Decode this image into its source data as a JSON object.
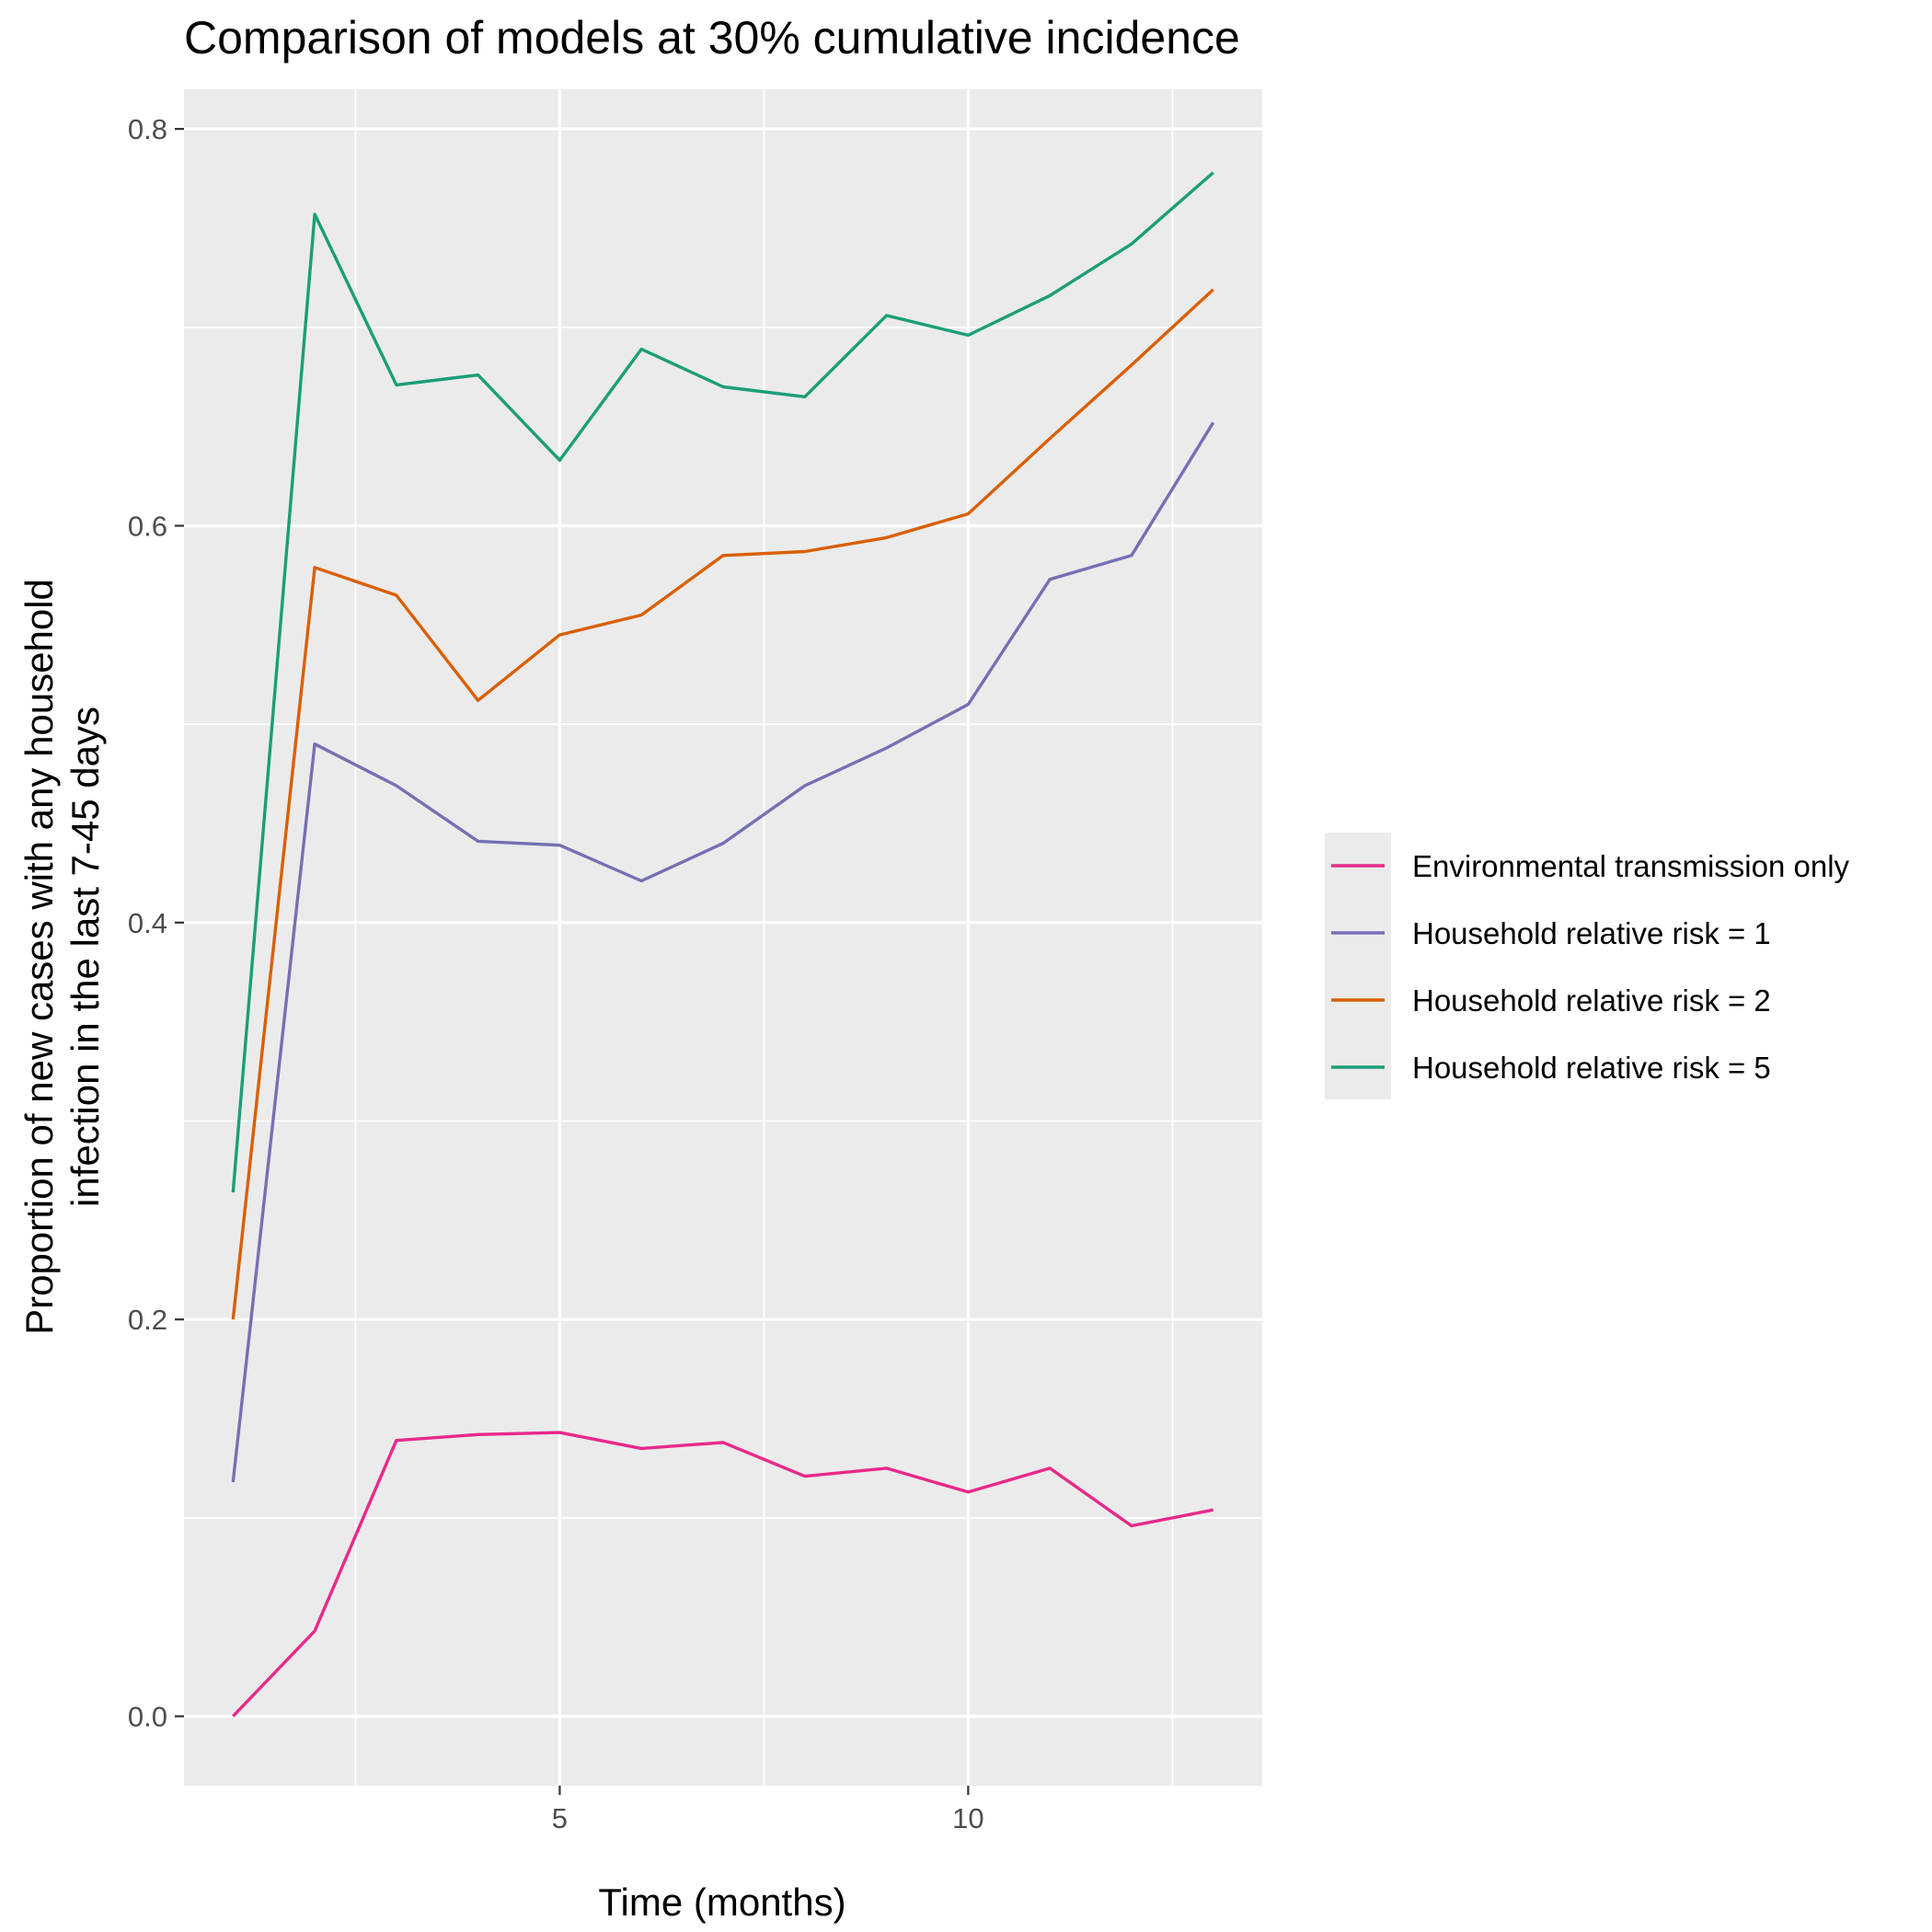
{
  "chart_data": {
    "type": "line",
    "title": "Comparison of models at 30% cumulative incidence",
    "xlabel": "Time (months)",
    "ylabel": [
      "Proportion of new cases with any household",
      "infection in the last 7-45 days"
    ],
    "x": [
      1,
      2,
      3,
      4,
      5,
      6,
      7,
      8,
      9,
      10,
      11,
      12,
      13
    ],
    "xlim": [
      0.4,
      13.6
    ],
    "ylim": [
      -0.035,
      0.82
    ],
    "x_ticks": [
      5,
      10
    ],
    "x_tick_labels": [
      "5",
      "10"
    ],
    "x_minor_ticks": [
      2.5,
      7.5,
      12.5
    ],
    "y_ticks": [
      0.0,
      0.2,
      0.4,
      0.6,
      0.8
    ],
    "y_tick_labels": [
      "0.0",
      "0.2",
      "0.4",
      "0.6",
      "0.8"
    ],
    "y_minor_ticks": [
      0.1,
      0.3,
      0.5,
      0.7
    ],
    "grid": true,
    "legend_position": "right",
    "series": [
      {
        "name": "Environmental transmission only",
        "color": "#e7298a",
        "values": [
          0.0,
          0.043,
          0.139,
          0.142,
          0.143,
          0.135,
          0.138,
          0.121,
          0.125,
          0.113,
          0.125,
          0.096,
          0.104
        ]
      },
      {
        "name": "Household relative risk = 1",
        "color": "#7570b3",
        "values": [
          0.118,
          0.49,
          0.469,
          0.441,
          0.439,
          0.421,
          0.44,
          0.469,
          0.488,
          0.51,
          0.573,
          0.585,
          0.652
        ]
      },
      {
        "name": "Household relative risk = 2",
        "color": "#d95f02",
        "values": [
          0.2,
          0.579,
          0.565,
          0.512,
          0.545,
          0.555,
          0.585,
          0.587,
          0.594,
          0.606,
          0.644,
          0.681,
          0.719
        ]
      },
      {
        "name": "Household relative risk = 5",
        "color": "#1b9e77",
        "values": [
          0.264,
          0.757,
          0.671,
          0.676,
          0.633,
          0.689,
          0.67,
          0.665,
          0.706,
          0.696,
          0.716,
          0.742,
          0.778
        ]
      }
    ]
  }
}
